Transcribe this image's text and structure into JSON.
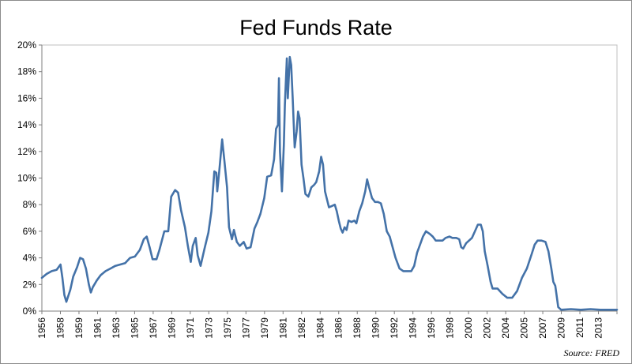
{
  "chart_data": {
    "type": "line",
    "title": "Fed Funds Rate",
    "source": "Source: FRED",
    "xlabel": "",
    "ylabel": "",
    "xlim": [
      1956,
      2014.7
    ],
    "ylim": [
      0,
      20
    ],
    "y_ticks": [
      "0%",
      "2%",
      "4%",
      "6%",
      "8%",
      "10%",
      "12%",
      "14%",
      "16%",
      "18%",
      "20%"
    ],
    "x_ticks": [
      "1956",
      "1958",
      "1959",
      "1961",
      "1963",
      "1965",
      "1967",
      "1969",
      "1971",
      "1973",
      "1975",
      "1977",
      "1979",
      "1981",
      "1982",
      "1984",
      "1986",
      "1988",
      "1990",
      "1992",
      "1994",
      "1996",
      "1998",
      "2000",
      "2002",
      "2004",
      "2005",
      "2007",
      "2009",
      "2011",
      "2013"
    ],
    "grid": false,
    "legend": "none",
    "colors": {
      "line": "#4472a8",
      "axis": "#7f7f7f"
    },
    "series": [
      {
        "x": [
          1956.0,
          1956.5,
          1957.0,
          1957.5,
          1957.9,
          1958.1,
          1958.3,
          1958.5,
          1958.9,
          1959.2,
          1959.6,
          1959.9,
          1960.2,
          1960.5,
          1960.8,
          1961.0,
          1961.2,
          1961.6,
          1962.0,
          1962.5,
          1963.0,
          1963.5,
          1964.0,
          1964.5,
          1965.0,
          1965.5,
          1966.0,
          1966.4,
          1966.7,
          1967.0,
          1967.3,
          1967.7,
          1968.0,
          1968.5,
          1968.9,
          1969.2,
          1969.6,
          1969.9,
          1970.2,
          1970.6,
          1970.9,
          1971.2,
          1971.4,
          1971.7,
          1971.9,
          1972.2,
          1972.6,
          1973.0,
          1973.3,
          1973.6,
          1973.8,
          1973.9,
          1974.1,
          1974.4,
          1974.6,
          1974.9,
          1975.1,
          1975.4,
          1975.6,
          1975.9,
          1976.2,
          1976.6,
          1976.9,
          1977.3,
          1977.7,
          1978.0,
          1978.3,
          1978.7,
          1979.0,
          1979.4,
          1979.7,
          1979.9,
          1980.1,
          1980.2,
          1980.3,
          1980.5,
          1980.7,
          1980.8,
          1981.0,
          1981.1,
          1981.3,
          1981.45,
          1981.6,
          1981.8,
          1982.0,
          1982.15,
          1982.3,
          1982.5,
          1982.7,
          1982.9,
          1983.2,
          1983.5,
          1983.8,
          1984.0,
          1984.3,
          1984.5,
          1984.7,
          1984.9,
          1985.1,
          1985.3,
          1985.6,
          1985.9,
          1986.1,
          1986.3,
          1986.5,
          1986.7,
          1986.9,
          1987.1,
          1987.3,
          1987.6,
          1987.9,
          1988.1,
          1988.4,
          1988.7,
          1989.0,
          1989.2,
          1989.4,
          1989.7,
          1990.0,
          1990.3,
          1990.6,
          1990.9,
          1991.2,
          1991.5,
          1991.8,
          1992.1,
          1992.5,
          1992.9,
          1993.3,
          1993.7,
          1994.0,
          1994.3,
          1994.6,
          1994.9,
          1995.2,
          1995.6,
          1995.9,
          1996.2,
          1996.6,
          1996.9,
          1997.2,
          1997.6,
          1997.9,
          1998.3,
          1998.6,
          1998.8,
          1999.0,
          1999.3,
          1999.6,
          1999.9,
          2000.2,
          2000.5,
          2000.8,
          2001.0,
          2001.2,
          2001.5,
          2001.8,
          2002.0,
          2002.5,
          2003.0,
          2003.5,
          2004.0,
          2004.5,
          2005.0,
          2005.5,
          2006.0,
          2006.3,
          2006.6,
          2007.0,
          2007.4,
          2007.7,
          2008.0,
          2008.2,
          2008.4,
          2008.7,
          2009.0,
          2010.0,
          2011.0,
          2012.0,
          2013.0,
          2014.7
        ],
        "y": [
          2.5,
          2.8,
          3.0,
          3.1,
          3.5,
          2.5,
          1.2,
          0.7,
          1.6,
          2.6,
          3.3,
          4.0,
          3.9,
          3.2,
          2.0,
          1.4,
          1.8,
          2.3,
          2.7,
          3.0,
          3.2,
          3.4,
          3.5,
          3.6,
          4.0,
          4.1,
          4.6,
          5.4,
          5.6,
          4.8,
          3.9,
          3.9,
          4.6,
          6.0,
          6.0,
          8.6,
          9.1,
          8.9,
          7.6,
          6.3,
          4.9,
          3.7,
          4.9,
          5.5,
          4.2,
          3.4,
          4.7,
          5.9,
          7.5,
          10.5,
          10.4,
          9.0,
          10.5,
          12.9,
          11.5,
          9.3,
          6.3,
          5.4,
          6.1,
          5.2,
          4.9,
          5.2,
          4.7,
          4.8,
          6.2,
          6.7,
          7.3,
          8.5,
          10.1,
          10.2,
          11.4,
          13.7,
          14.0,
          17.5,
          12.0,
          9.0,
          12.5,
          15.5,
          19.0,
          16.0,
          19.1,
          18.5,
          16.0,
          12.3,
          13.5,
          15.0,
          14.5,
          11.0,
          10.0,
          8.8,
          8.6,
          9.3,
          9.5,
          9.7,
          10.5,
          11.6,
          11.0,
          9.0,
          8.4,
          7.8,
          7.9,
          8.0,
          7.5,
          6.8,
          6.2,
          5.9,
          6.3,
          6.1,
          6.8,
          6.7,
          6.8,
          6.6,
          7.5,
          8.1,
          9.0,
          9.9,
          9.3,
          8.5,
          8.2,
          8.2,
          8.1,
          7.3,
          6.0,
          5.6,
          4.8,
          4.0,
          3.2,
          3.0,
          3.0,
          3.0,
          3.4,
          4.4,
          5.0,
          5.6,
          6.0,
          5.8,
          5.6,
          5.3,
          5.3,
          5.3,
          5.5,
          5.6,
          5.5,
          5.5,
          5.4,
          4.8,
          4.7,
          5.1,
          5.3,
          5.5,
          6.0,
          6.5,
          6.5,
          6.0,
          4.5,
          3.4,
          2.2,
          1.7,
          1.7,
          1.3,
          1.0,
          1.0,
          1.5,
          2.5,
          3.2,
          4.3,
          5.0,
          5.3,
          5.3,
          5.2,
          4.5,
          3.2,
          2.2,
          1.9,
          0.3,
          0.1,
          0.15,
          0.1,
          0.15,
          0.1,
          0.1
        ]
      }
    ]
  }
}
